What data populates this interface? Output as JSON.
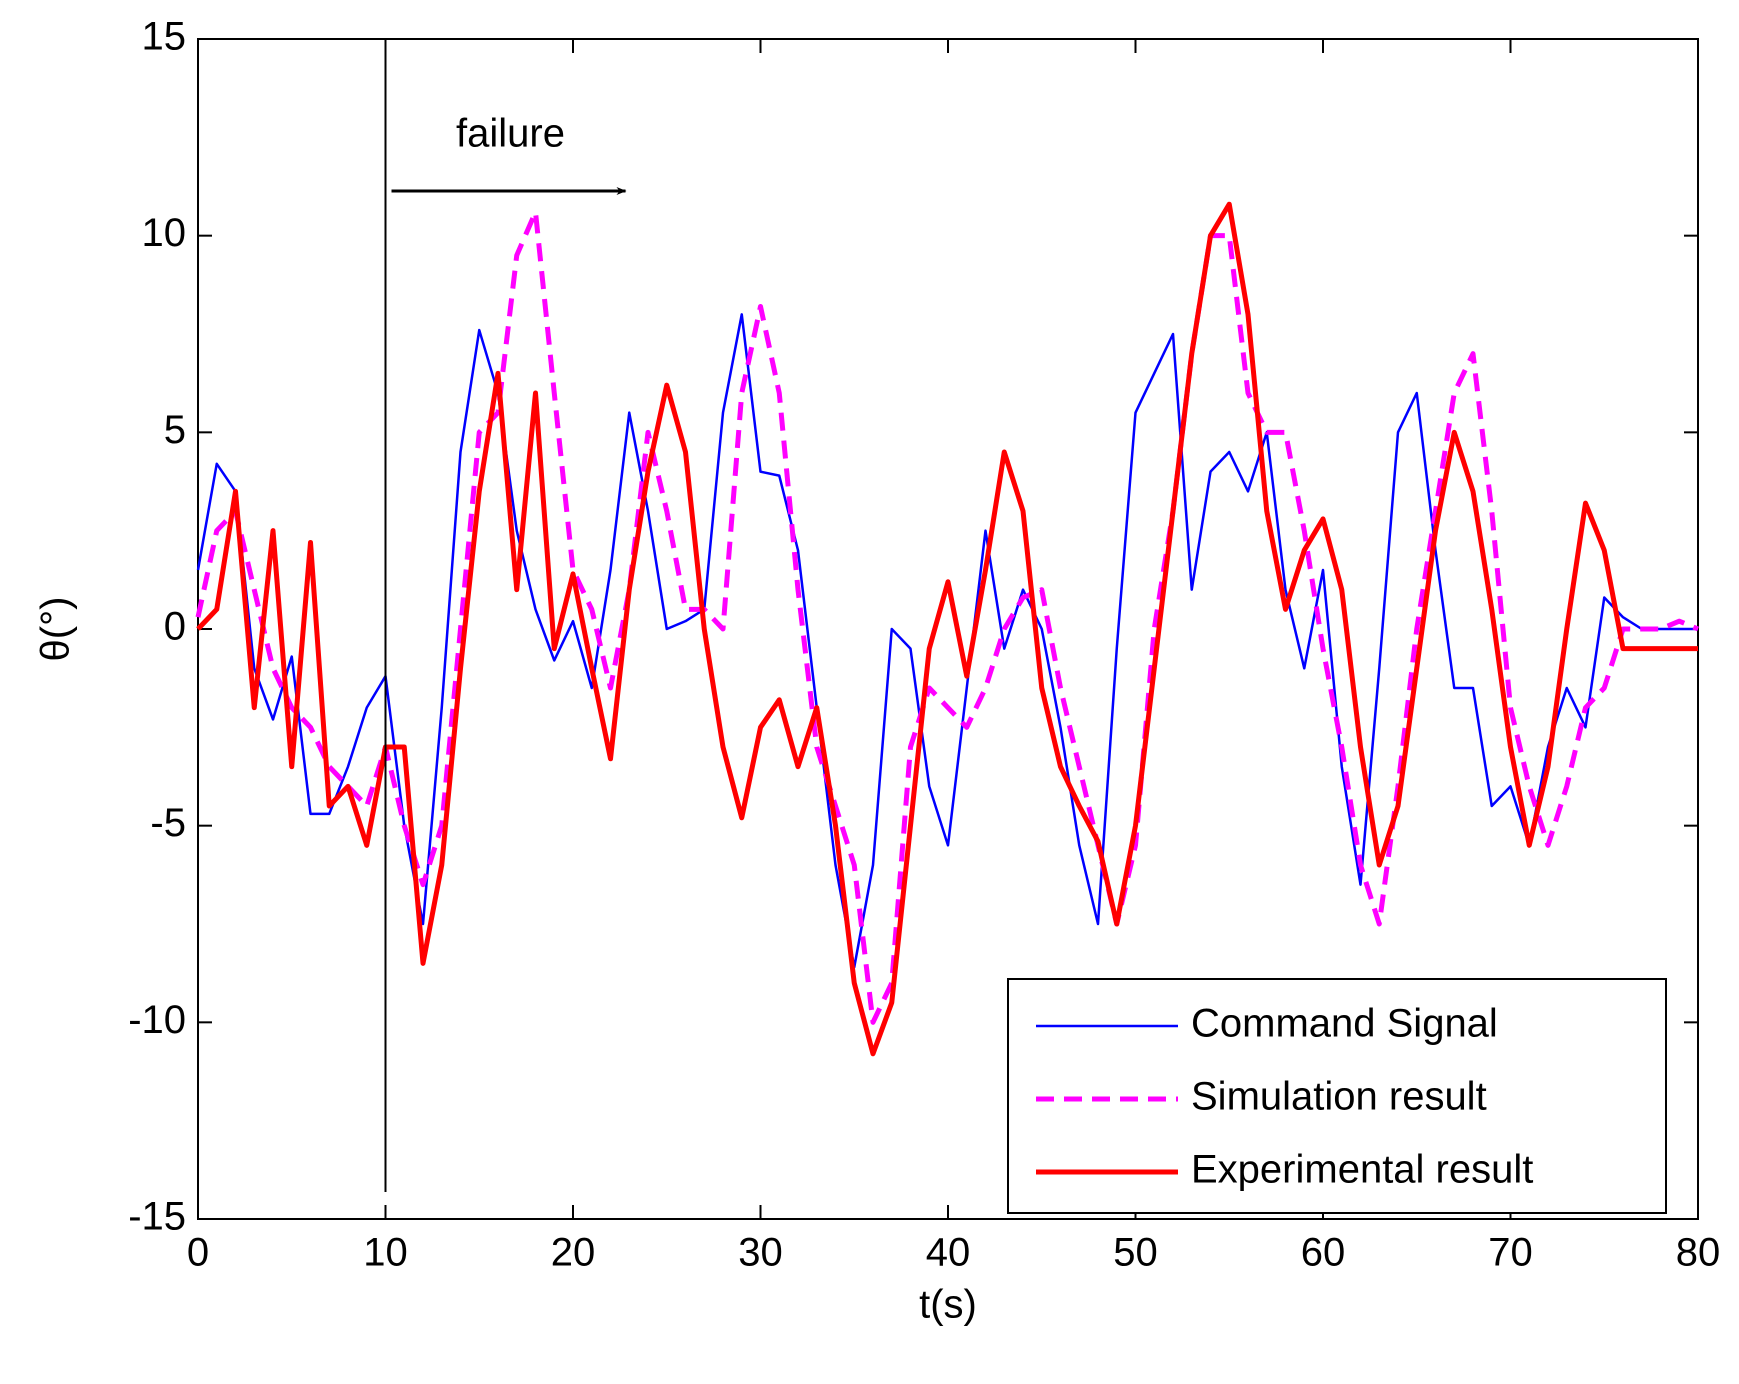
{
  "chart_data": {
    "type": "line",
    "xlabel": "t(s)",
    "ylabel": "θ(°)",
    "x": [
      0,
      1,
      2,
      3,
      4,
      5,
      6,
      7,
      8,
      9,
      10,
      11,
      12,
      13,
      14,
      15,
      16,
      17,
      18,
      19,
      20,
      21,
      22,
      23,
      24,
      25,
      26,
      27,
      28,
      29,
      30,
      31,
      32,
      33,
      34,
      35,
      36,
      37,
      38,
      39,
      40,
      41,
      42,
      43,
      44,
      45,
      46,
      47,
      48,
      49,
      50,
      51,
      52,
      53,
      54,
      55,
      56,
      57,
      58,
      59,
      60,
      61,
      62,
      63,
      64,
      65,
      66,
      67,
      68,
      69,
      70,
      71,
      72,
      73,
      74,
      75,
      76,
      77,
      78,
      79,
      80
    ],
    "series": [
      {
        "name": "Command Signal",
        "color": "#0000ff",
        "dash": "solid",
        "width": 2.5,
        "values": [
          1.5,
          4.2,
          3.5,
          -1,
          -2.3,
          -0.7,
          -4.7,
          -4.7,
          -3.5,
          -2,
          -1.2,
          -5,
          -7.5,
          -2,
          4.5,
          7.6,
          6,
          2.5,
          0.5,
          -0.8,
          0.2,
          -1.5,
          1.5,
          5.5,
          3,
          0,
          0.2,
          0.5,
          5.5,
          8,
          4,
          3.9,
          2,
          -2,
          -6,
          -8.6,
          -6,
          0,
          -0.5,
          -4,
          -5.5,
          -1.5,
          2.5,
          -0.5,
          1,
          0,
          -2.5,
          -5.5,
          -7.5,
          -0.5,
          5.5,
          6.5,
          7.5,
          1,
          4,
          4.5,
          3.5,
          5,
          1,
          -1,
          1.5,
          -3.5,
          -6.5,
          -1,
          5,
          6,
          2,
          -1.5,
          -1.5,
          -4.5,
          -4,
          -5.5,
          -3,
          -1.5,
          -2.5,
          0.8,
          0.3,
          0,
          0,
          0,
          0
        ]
      },
      {
        "name": "Simulation result",
        "color": "#ff00ff",
        "dash": "dashed",
        "width": 5,
        "values": [
          0.3,
          2.5,
          3,
          1,
          -1,
          -2,
          -2.5,
          -3.5,
          -4,
          -4.5,
          -3,
          -5,
          -6.5,
          -5,
          0,
          5,
          5.5,
          9.5,
          10.6,
          6,
          1.5,
          0.5,
          -1.5,
          1,
          5,
          3,
          0.5,
          0.5,
          0,
          6,
          8.2,
          6,
          1,
          -3,
          -4.5,
          -6,
          -10,
          -9,
          -3,
          -1.5,
          -2,
          -2.5,
          -1.5,
          0,
          0.8,
          1,
          -1.5,
          -3.5,
          -5.5,
          -7.5,
          -5.5,
          0,
          3,
          7,
          10,
          10,
          6,
          5,
          5,
          2.5,
          -0.5,
          -3,
          -6,
          -7.5,
          -4,
          0,
          3,
          6,
          7,
          3,
          -2,
          -4,
          -5.5,
          -4,
          -2,
          -1.5,
          0,
          0,
          0,
          0.2,
          0
        ]
      },
      {
        "name": "Experimental result",
        "color": "#ff0000",
        "dash": "solid",
        "width": 5,
        "values": [
          0,
          0.5,
          3.5,
          -2,
          2.5,
          -3.5,
          2.2,
          -4.5,
          -4,
          -5.5,
          -3,
          -3,
          -8.5,
          -6,
          -1,
          3.5,
          6.5,
          1,
          6,
          -0.5,
          1.4,
          -1,
          -3.3,
          1,
          4,
          6.2,
          4.5,
          0,
          -3,
          -4.8,
          -2.5,
          -1.8,
          -3.5,
          -2,
          -5,
          -9,
          -10.8,
          -9.5,
          -5,
          -0.5,
          1.2,
          -1.2,
          1.5,
          4.5,
          3,
          -1.5,
          -3.5,
          -4.5,
          -5.4,
          -7.5,
          -5,
          -1,
          3,
          7,
          10,
          10.8,
          8,
          3,
          0.5,
          2,
          2.8,
          1,
          -3,
          -6,
          -4.5,
          -1,
          2.5,
          5,
          3.5,
          0.5,
          -3,
          -5.5,
          -3.5,
          0,
          3.2,
          2,
          -0.5,
          -0.5,
          -0.5,
          -0.5,
          -0.5
        ]
      }
    ],
    "annotation": {
      "text": "failure",
      "x": 10
    },
    "xlim": [
      0,
      80
    ],
    "xticks": [
      0,
      10,
      20,
      30,
      40,
      50,
      60,
      70,
      80
    ],
    "ylim": [
      -15,
      15
    ],
    "yticks": [
      -15,
      -10,
      -5,
      0,
      5,
      10,
      15
    ],
    "legend": "lower right",
    "grid": false
  }
}
